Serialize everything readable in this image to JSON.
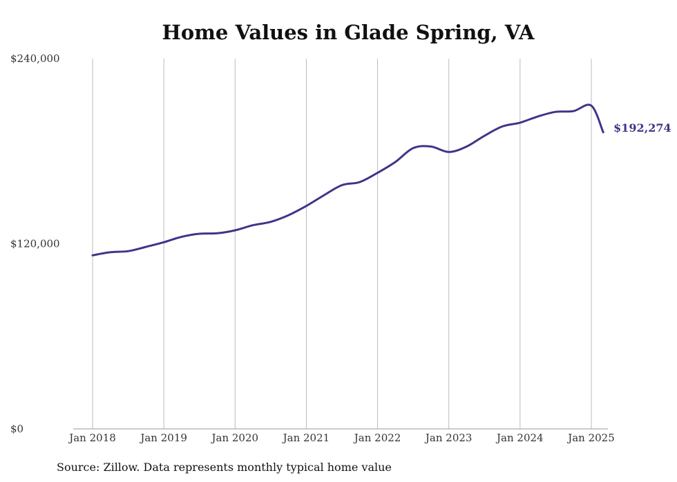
{
  "chart_data": {
    "type": "line",
    "title": "Home Values in Glade Spring, VA",
    "source": "Source: Zillow. Data represents monthly typical home value",
    "xlabel": "",
    "ylabel": "",
    "x_ticks": [
      "Jan 2018",
      "Jan 2019",
      "Jan 2020",
      "Jan 2021",
      "Jan 2022",
      "Jan 2023",
      "Jan 2024",
      "Jan 2025"
    ],
    "y_ticks": [
      "$0",
      "$120,000",
      "$240,000"
    ],
    "y_tick_values": [
      0,
      120000,
      240000
    ],
    "ylim": [
      0,
      240000
    ],
    "grid": "vertical",
    "end_label": "$192,274",
    "colors": {
      "line": "#3d3589",
      "grid": "#bbbbbb",
      "axis": "#999999",
      "text": "#333333"
    },
    "series": [
      {
        "x": [
          "2018-01",
          "2018-04",
          "2018-07",
          "2018-10",
          "2019-01",
          "2019-04",
          "2019-07",
          "2019-10",
          "2020-01",
          "2020-04",
          "2020-07",
          "2020-10",
          "2021-01",
          "2021-04",
          "2021-07",
          "2021-10",
          "2022-01",
          "2022-04",
          "2022-07",
          "2022-10",
          "2023-01",
          "2023-04",
          "2023-07",
          "2023-10",
          "2024-01",
          "2024-04",
          "2024-07",
          "2024-10",
          "2025-01",
          "2025-03"
        ],
        "values": [
          112500,
          114500,
          115200,
          118000,
          121000,
          124500,
          126500,
          126800,
          128700,
          132000,
          134200,
          138500,
          144500,
          151500,
          158000,
          160000,
          166000,
          173000,
          182000,
          183000,
          179500,
          183000,
          190000,
          196000,
          198500,
          202500,
          205500,
          206000,
          209500,
          192274
        ]
      }
    ]
  }
}
